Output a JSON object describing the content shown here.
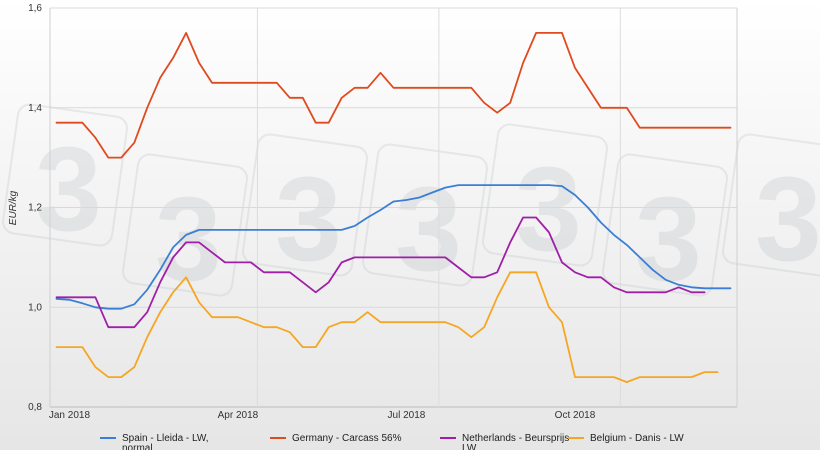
{
  "chart_data": {
    "type": "line",
    "title": "",
    "xlabel": "",
    "ylabel": "EUR/kg",
    "ylim": [
      0.8,
      1.6
    ],
    "yticks": [
      "0,8",
      "1,0",
      "1,2",
      "1,4",
      "1,6"
    ],
    "xlim": [
      0,
      53
    ],
    "xticks": [
      {
        "label": "Jan 2018",
        "x": 1.5
      },
      {
        "label": "Apr 2018",
        "x": 14.5
      },
      {
        "label": "Jul 2018",
        "x": 27.5
      },
      {
        "label": "Oct 2018",
        "x": 40.5
      }
    ],
    "grid": true,
    "legend": "bottom",
    "watermark": "3",
    "series": [
      {
        "name": "Spain - Lleida - LW, normal",
        "color": "#3a7fd5",
        "values": [
          1.017,
          1.015,
          1.008,
          1.0,
          0.997,
          0.997,
          1.006,
          1.035,
          1.075,
          1.12,
          1.145,
          1.155,
          1.155,
          1.155,
          1.155,
          1.155,
          1.155,
          1.155,
          1.155,
          1.155,
          1.155,
          1.155,
          1.155,
          1.163,
          1.18,
          1.195,
          1.212,
          1.215,
          1.22,
          1.23,
          1.24,
          1.245,
          1.245,
          1.245,
          1.245,
          1.245,
          1.245,
          1.245,
          1.245,
          1.243,
          1.225,
          1.2,
          1.17,
          1.145,
          1.125,
          1.1,
          1.075,
          1.055,
          1.045,
          1.04,
          1.038,
          1.038,
          1.038
        ]
      },
      {
        "name": "Germany - Carcass 56%",
        "color": "#e04a1f",
        "values": [
          1.37,
          1.37,
          1.37,
          1.34,
          1.3,
          1.3,
          1.33,
          1.4,
          1.46,
          1.5,
          1.55,
          1.49,
          1.45,
          1.45,
          1.45,
          1.45,
          1.45,
          1.45,
          1.42,
          1.42,
          1.37,
          1.37,
          1.42,
          1.44,
          1.44,
          1.47,
          1.44,
          1.44,
          1.44,
          1.44,
          1.44,
          1.44,
          1.44,
          1.41,
          1.39,
          1.41,
          1.49,
          1.55,
          1.55,
          1.55,
          1.48,
          1.44,
          1.4,
          1.4,
          1.4,
          1.36,
          1.36,
          1.36,
          1.36,
          1.36,
          1.36,
          1.36,
          1.36
        ]
      },
      {
        "name": "Netherlands - Beursprijs - LW",
        "color": "#a01ea8",
        "values": [
          1.02,
          1.02,
          1.02,
          1.02,
          0.96,
          0.96,
          0.96,
          0.99,
          1.05,
          1.1,
          1.13,
          1.13,
          1.11,
          1.09,
          1.09,
          1.09,
          1.07,
          1.07,
          1.07,
          1.05,
          1.03,
          1.05,
          1.09,
          1.1,
          1.1,
          1.1,
          1.1,
          1.1,
          1.1,
          1.1,
          1.1,
          1.08,
          1.06,
          1.06,
          1.07,
          1.13,
          1.18,
          1.18,
          1.15,
          1.09,
          1.07,
          1.06,
          1.06,
          1.04,
          1.03,
          1.03,
          1.03,
          1.03,
          1.04,
          1.03,
          1.03
        ]
      },
      {
        "name": "Belgium - Danis - LW",
        "color": "#f5a623",
        "values": [
          0.92,
          0.92,
          0.92,
          0.88,
          0.86,
          0.86,
          0.88,
          0.94,
          0.99,
          1.03,
          1.06,
          1.01,
          0.98,
          0.98,
          0.98,
          0.97,
          0.96,
          0.96,
          0.95,
          0.92,
          0.92,
          0.96,
          0.97,
          0.97,
          0.99,
          0.97,
          0.97,
          0.97,
          0.97,
          0.97,
          0.97,
          0.96,
          0.94,
          0.96,
          1.02,
          1.07,
          1.07,
          1.07,
          1.0,
          0.97,
          0.86,
          0.86,
          0.86,
          0.86,
          0.85,
          0.86,
          0.86,
          0.86,
          0.86,
          0.86,
          0.87,
          0.87
        ]
      }
    ]
  }
}
